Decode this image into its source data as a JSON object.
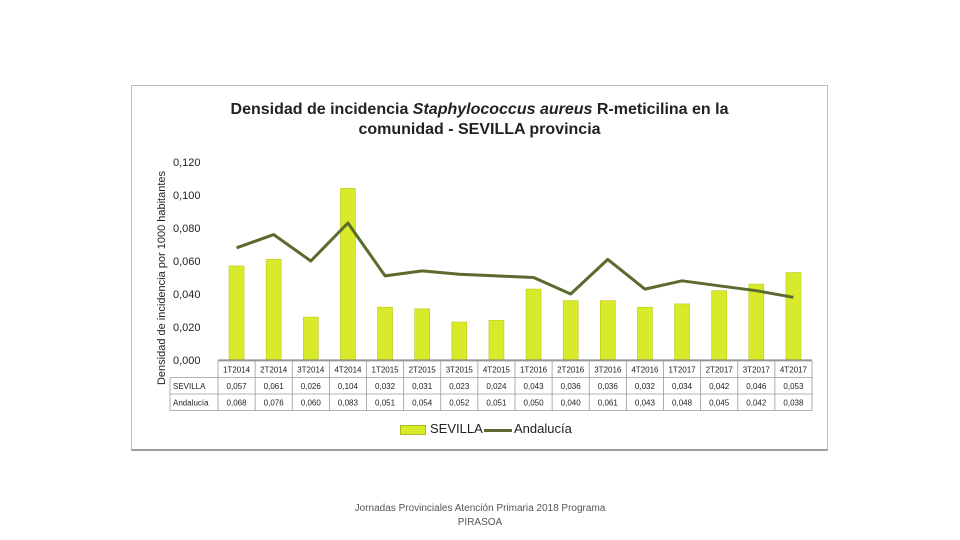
{
  "page": {
    "footer_line1": "Jornadas Provinciales Atención Primaria 2018  Programa",
    "footer_line2": "PIRASOA"
  },
  "chart_data": {
    "type": "bar",
    "title_part1": "Densidad de incidencia ",
    "title_italic": "Staphylococcus aureus",
    "title_part2": " R-meticilina en la",
    "title_line2": "comunidad - SEVILLA provincia",
    "ylabel": "Densidad de incidencia por 1000 habitantes",
    "xlabel": "",
    "ylim": [
      0,
      0.12
    ],
    "yticks": [
      "0,000",
      "0,020",
      "0,040",
      "0,060",
      "0,080",
      "0,100",
      "0,120"
    ],
    "ytick_values": [
      0,
      0.02,
      0.04,
      0.06,
      0.08,
      0.1,
      0.12
    ],
    "categories": [
      "1T2014",
      "2T2014",
      "3T2014",
      "4T2014",
      "1T2015",
      "2T2015",
      "3T2015",
      "4T2015",
      "1T2016",
      "2T2016",
      "3T2016",
      "4T2016",
      "1T2017",
      "2T2017",
      "3T2017",
      "4T2017"
    ],
    "series": [
      {
        "name": "SEVILLA",
        "type": "bar",
        "color": "#d9ea2a",
        "values": [
          0.057,
          0.061,
          0.026,
          0.104,
          0.032,
          0.031,
          0.023,
          0.024,
          0.043,
          0.036,
          0.036,
          0.032,
          0.034,
          0.042,
          0.046,
          0.053
        ],
        "labels": [
          "0,057",
          "0,061",
          "0,026",
          "0,104",
          "0,032",
          "0,031",
          "0,023",
          "0,024",
          "0,043",
          "0,036",
          "0,036",
          "0,032",
          "0,034",
          "0,042",
          "0,046",
          "0,053"
        ]
      },
      {
        "name": "Andalucía",
        "type": "line",
        "color": "#5b6b2e",
        "values": [
          0.068,
          0.076,
          0.06,
          0.083,
          0.051,
          0.054,
          0.052,
          0.051,
          0.05,
          0.04,
          0.061,
          0.043,
          0.048,
          0.045,
          0.042,
          0.038
        ],
        "labels": [
          "0,068",
          "0,076",
          "0,060",
          "0,083",
          "0,051",
          "0,054",
          "0,052",
          "0,051",
          "0,050",
          "0,040",
          "0,061",
          "0,043",
          "0,048",
          "0,045",
          "0,042",
          "0,038"
        ]
      }
    ],
    "data_table_row_labels": [
      "SEVILLA",
      "Andalucía"
    ],
    "legend_position": "bottom",
    "grid": true
  }
}
